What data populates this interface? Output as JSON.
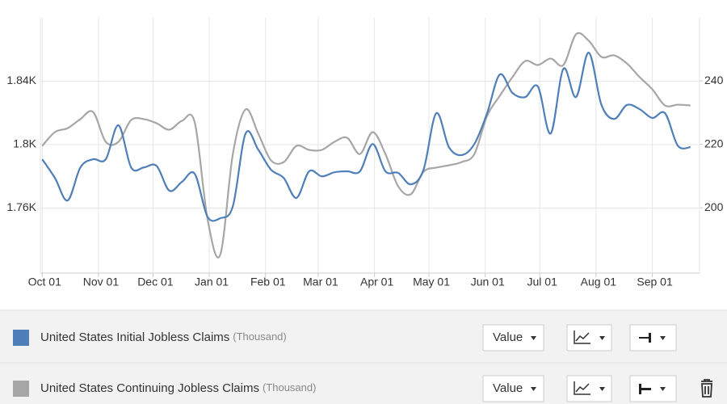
{
  "chart_data": {
    "type": "line",
    "x": [
      0,
      7,
      14,
      21,
      28,
      35,
      42,
      49,
      56,
      63,
      70,
      77,
      84,
      91,
      98,
      105,
      112,
      119,
      126,
      133,
      140,
      147,
      154,
      161,
      168,
      175,
      182,
      189,
      196,
      203,
      210,
      217,
      224,
      231,
      238,
      245,
      252,
      259,
      266,
      273,
      280,
      287,
      294,
      301,
      308,
      315,
      322,
      329,
      336,
      343,
      350,
      357
    ],
    "xlim": [
      -1,
      362
    ],
    "xticks": [
      {
        "value": 0,
        "label": "Oct 01"
      },
      {
        "value": 31,
        "label": "Nov 01"
      },
      {
        "value": 61,
        "label": "Dec 01"
      },
      {
        "value": 92,
        "label": "Jan 01"
      },
      {
        "value": 123,
        "label": "Feb 01"
      },
      {
        "value": 152,
        "label": "Mar 01"
      },
      {
        "value": 183,
        "label": "Apr 01"
      },
      {
        "value": 213,
        "label": "May 01"
      },
      {
        "value": 244,
        "label": "Jun 01"
      },
      {
        "value": 274,
        "label": "Jul 01"
      },
      {
        "value": 305,
        "label": "Aug 01"
      },
      {
        "value": 336,
        "label": "Sep 01"
      }
    ],
    "ylim": [
      1719,
      1880
    ],
    "yticks": [
      {
        "value": 1760,
        "label": "1.76K"
      },
      {
        "value": 1800,
        "label": "1.8K"
      },
      {
        "value": 1840,
        "label": "1.84K"
      }
    ],
    "y2lim": [
      179.4,
      259.9
    ],
    "y2ticks": [
      200,
      220,
      240
    ],
    "grid": true,
    "series": [
      {
        "name": "United States Initial Jobless Claims",
        "unit": "(Thousand)",
        "color": "#4f7fb8",
        "axis": "y2",
        "values": [
          215.3,
          209.4,
          202.3,
          212.7,
          215.3,
          215.3,
          226.0,
          212.7,
          212.7,
          213.2,
          205.4,
          208.2,
          210.7,
          197.2,
          196.7,
          200.5,
          223.4,
          218.3,
          212.0,
          209.4,
          203.1,
          211.5,
          209.9,
          211.2,
          211.5,
          211.5,
          220.1,
          211.5,
          211.0,
          207.4,
          212.0,
          229.8,
          219.1,
          216.6,
          220.1,
          229.8,
          242.0,
          236.2,
          234.9,
          238.2,
          223.4,
          243.8,
          234.9,
          248.9,
          232.4,
          228.0,
          232.4,
          231.1,
          228.3,
          229.8,
          219.6,
          219.1
        ]
      },
      {
        "name": "United States Continuing Jobless Claims",
        "unit": "(Thousand)",
        "color": "#a6a6a6",
        "axis": "y",
        "values": [
          1799.2,
          1807.9,
          1810.4,
          1816.1,
          1820.6,
          1801.8,
          1801.8,
          1815.5,
          1816.1,
          1813.5,
          1809.4,
          1815.0,
          1814.0,
          1753.4,
          1730.4,
          1794.1,
          1822.2,
          1806.9,
          1790.1,
          1789.0,
          1799.2,
          1796.7,
          1796.7,
          1801.8,
          1804.3,
          1794.1,
          1807.9,
          1794.1,
          1773.8,
          1768.7,
          1782.9,
          1785.5,
          1787.0,
          1789.0,
          1794.1,
          1818.1,
          1830.8,
          1842.6,
          1852.7,
          1850.2,
          1854.3,
          1850.2,
          1869.6,
          1865.5,
          1855.3,
          1856.3,
          1851.2,
          1842.6,
          1834.9,
          1824.7,
          1825.2,
          1824.7
        ]
      }
    ]
  },
  "ui": {
    "dropdown_label": "Value"
  }
}
